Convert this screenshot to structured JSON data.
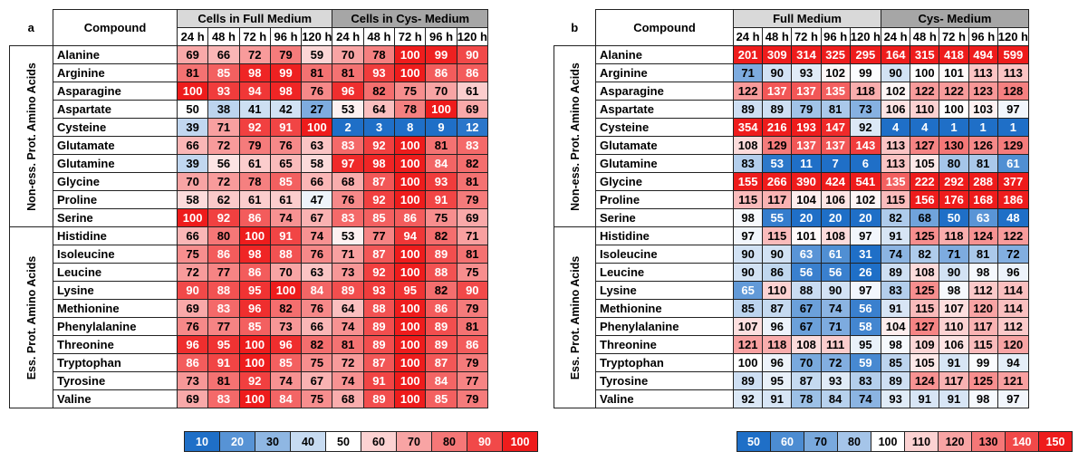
{
  "figure": {
    "panels": [
      {
        "letter": "a",
        "compound_header": "Compound",
        "groups": [
          "Cells in Full Medium",
          "Cells in Cys- Medium"
        ],
        "times": [
          "24 h",
          "48 h",
          "72 h",
          "96 h",
          "120 h"
        ],
        "categories": [
          {
            "label": "Non-ess. Prot. Amino Acids",
            "rows": [
              {
                "compound": "Alanine",
                "values": [
                  69,
                  66,
                  72,
                  79,
                  59,
                  70,
                  78,
                  100,
                  99,
                  90
                ]
              },
              {
                "compound": "Arginine",
                "values": [
                  81,
                  85,
                  98,
                  99,
                  81,
                  81,
                  93,
                  100,
                  86,
                  86
                ]
              },
              {
                "compound": "Asparagine",
                "values": [
                  100,
                  93,
                  94,
                  98,
                  76,
                  96,
                  82,
                  75,
                  70,
                  61
                ]
              },
              {
                "compound": "Aspartate",
                "values": [
                  50,
                  38,
                  41,
                  42,
                  27,
                  53,
                  64,
                  78,
                  100,
                  69
                ]
              },
              {
                "compound": "Cysteine",
                "values": [
                  39,
                  71,
                  92,
                  91,
                  100,
                  2,
                  3,
                  8,
                  9,
                  12
                ]
              },
              {
                "compound": "Glutamate",
                "values": [
                  66,
                  72,
                  79,
                  76,
                  63,
                  83,
                  92,
                  100,
                  81,
                  83
                ]
              },
              {
                "compound": "Glutamine",
                "values": [
                  39,
                  56,
                  61,
                  65,
                  58,
                  97,
                  98,
                  100,
                  84,
                  82
                ]
              },
              {
                "compound": "Glycine",
                "values": [
                  70,
                  72,
                  78,
                  85,
                  66,
                  68,
                  87,
                  100,
                  93,
                  81
                ]
              },
              {
                "compound": "Proline",
                "values": [
                  58,
                  62,
                  61,
                  61,
                  47,
                  76,
                  92,
                  100,
                  91,
                  79
                ]
              },
              {
                "compound": "Serine",
                "values": [
                  100,
                  92,
                  86,
                  74,
                  67,
                  83,
                  85,
                  86,
                  75,
                  69
                ]
              }
            ]
          },
          {
            "label": "Ess. Prot. Amino Acids",
            "rows": [
              {
                "compound": "Histidine",
                "values": [
                  66,
                  80,
                  100,
                  91,
                  74,
                  53,
                  77,
                  94,
                  82,
                  71
                ]
              },
              {
                "compound": "Isoleucine",
                "values": [
                  75,
                  86,
                  98,
                  88,
                  76,
                  71,
                  87,
                  100,
                  89,
                  81
                ]
              },
              {
                "compound": "Leucine",
                "values": [
                  72,
                  77,
                  86,
                  70,
                  63,
                  73,
                  92,
                  100,
                  88,
                  75
                ]
              },
              {
                "compound": "Lysine",
                "values": [
                  90,
                  88,
                  95,
                  100,
                  84,
                  89,
                  93,
                  95,
                  82,
                  90
                ]
              },
              {
                "compound": "Methionine",
                "values": [
                  69,
                  83,
                  96,
                  82,
                  76,
                  64,
                  88,
                  100,
                  86,
                  79
                ]
              },
              {
                "compound": "Phenylalanine",
                "values": [
                  76,
                  77,
                  85,
                  73,
                  66,
                  74,
                  89,
                  100,
                  89,
                  81
                ]
              },
              {
                "compound": "Threonine",
                "values": [
                  96,
                  95,
                  100,
                  96,
                  82,
                  81,
                  89,
                  100,
                  89,
                  86
                ]
              },
              {
                "compound": "Tryptophan",
                "values": [
                  86,
                  91,
                  100,
                  85,
                  75,
                  72,
                  87,
                  100,
                  87,
                  79
                ]
              },
              {
                "compound": "Tyrosine",
                "values": [
                  73,
                  81,
                  92,
                  74,
                  67,
                  74,
                  91,
                  100,
                  84,
                  77
                ]
              },
              {
                "compound": "Valine",
                "values": [
                  69,
                  83,
                  100,
                  84,
                  75,
                  68,
                  89,
                  100,
                  85,
                  79
                ]
              }
            ]
          }
        ],
        "legend": [
          10,
          20,
          30,
          40,
          50,
          60,
          70,
          80,
          90,
          100
        ]
      },
      {
        "letter": "b",
        "compound_header": "Compound",
        "groups": [
          "Full Medium",
          "Cys- Medium"
        ],
        "times": [
          "24 h",
          "48 h",
          "72 h",
          "96 h",
          "120 h"
        ],
        "categories": [
          {
            "label": "Non-ess. Prot. Amino Acids",
            "rows": [
              {
                "compound": "Alanine",
                "values": [
                  201,
                  309,
                  314,
                  325,
                  295,
                  164,
                  315,
                  418,
                  494,
                  599
                ]
              },
              {
                "compound": "Arginine",
                "values": [
                  71,
                  90,
                  93,
                  102,
                  99,
                  90,
                  100,
                  101,
                  113,
                  113
                ]
              },
              {
                "compound": "Asparagine",
                "values": [
                  122,
                  137,
                  137,
                  135,
                  118,
                  102,
                  122,
                  122,
                  123,
                  128
                ]
              },
              {
                "compound": "Aspartate",
                "values": [
                  89,
                  89,
                  79,
                  81,
                  73,
                  106,
                  110,
                  100,
                  103,
                  97
                ]
              },
              {
                "compound": "Cysteine",
                "values": [
                  354,
                  216,
                  193,
                  147,
                  92,
                  4,
                  4,
                  1,
                  1,
                  1
                ]
              },
              {
                "compound": "Glutamate",
                "values": [
                  108,
                  129,
                  137,
                  137,
                  143,
                  113,
                  127,
                  130,
                  126,
                  129
                ]
              },
              {
                "compound": "Glutamine",
                "values": [
                  83,
                  53,
                  11,
                  7,
                  6,
                  113,
                  105,
                  80,
                  81,
                  61
                ]
              },
              {
                "compound": "Glycine",
                "values": [
                  155,
                  266,
                  390,
                  424,
                  541,
                  135,
                  222,
                  292,
                  288,
                  377
                ]
              },
              {
                "compound": "Proline",
                "values": [
                  115,
                  117,
                  104,
                  106,
                  102,
                  115,
                  156,
                  176,
                  168,
                  186
                ]
              },
              {
                "compound": "Serine",
                "values": [
                  98,
                  55,
                  20,
                  20,
                  20,
                  82,
                  68,
                  50,
                  63,
                  48
                ]
              }
            ]
          },
          {
            "label": "Ess. Prot. Amino Acids",
            "rows": [
              {
                "compound": "Histidine",
                "values": [
                  97,
                  115,
                  101,
                  108,
                  97,
                  91,
                  125,
                  118,
                  124,
                  122
                ]
              },
              {
                "compound": "Isoleucine",
                "values": [
                  90,
                  90,
                  63,
                  61,
                  31,
                  74,
                  82,
                  71,
                  81,
                  72
                ]
              },
              {
                "compound": "Leucine",
                "values": [
                  90,
                  86,
                  56,
                  56,
                  26,
                  89,
                  108,
                  90,
                  98,
                  96
                ]
              },
              {
                "compound": "Lysine",
                "values": [
                  65,
                  110,
                  88,
                  90,
                  97,
                  83,
                  125,
                  98,
                  112,
                  114
                ]
              },
              {
                "compound": "Methionine",
                "values": [
                  85,
                  87,
                  67,
                  74,
                  56,
                  91,
                  115,
                  107,
                  120,
                  114
                ]
              },
              {
                "compound": "Phenylalanine",
                "values": [
                  107,
                  96,
                  67,
                  71,
                  58,
                  104,
                  127,
                  110,
                  117,
                  112
                ]
              },
              {
                "compound": "Threonine",
                "values": [
                  121,
                  118,
                  108,
                  111,
                  95,
                  98,
                  109,
                  106,
                  115,
                  120
                ]
              },
              {
                "compound": "Tryptophan",
                "values": [
                  100,
                  96,
                  70,
                  72,
                  59,
                  85,
                  105,
                  91,
                  99,
                  94
                ]
              },
              {
                "compound": "Tyrosine",
                "values": [
                  89,
                  95,
                  87,
                  93,
                  83,
                  89,
                  124,
                  117,
                  125,
                  121
                ]
              },
              {
                "compound": "Valine",
                "values": [
                  92,
                  91,
                  78,
                  84,
                  74,
                  93,
                  91,
                  91,
                  98,
                  97
                ]
              }
            ]
          }
        ],
        "legend": [
          50,
          60,
          70,
          80,
          100,
          110,
          120,
          130,
          140,
          150
        ]
      }
    ]
  },
  "chart_data": [
    {
      "type": "heatmap",
      "title": "a",
      "row_header": "Compound",
      "column_groups": [
        "Cells in Full Medium",
        "Cells in Cys- Medium"
      ],
      "columns": [
        "24 h",
        "48 h",
        "72 h",
        "96 h",
        "120 h",
        "24 h",
        "48 h",
        "72 h",
        "96 h",
        "120 h"
      ],
      "row_groups": [
        "Non-ess. Prot. Amino Acids",
        "Ess. Prot. Amino Acids"
      ],
      "color_scale": {
        "stops": [
          10,
          20,
          30,
          40,
          50,
          60,
          70,
          80,
          90,
          100
        ],
        "low_color": "#1f6fc7",
        "mid_color": "#ffffff",
        "high_color": "#ee1c1c"
      }
    },
    {
      "type": "heatmap",
      "title": "b",
      "row_header": "Compound",
      "column_groups": [
        "Full Medium",
        "Cys- Medium"
      ],
      "columns": [
        "24 h",
        "48 h",
        "72 h",
        "96 h",
        "120 h",
        "24 h",
        "48 h",
        "72 h",
        "96 h",
        "120 h"
      ],
      "row_groups": [
        "Non-ess. Prot. Amino Acids",
        "Ess. Prot. Amino Acids"
      ],
      "color_scale": {
        "stops": [
          50,
          60,
          70,
          80,
          100,
          110,
          120,
          130,
          140,
          150
        ],
        "low_color": "#1f6fc7",
        "mid_color": "#ffffff",
        "high_color": "#ee1c1c"
      }
    }
  ]
}
